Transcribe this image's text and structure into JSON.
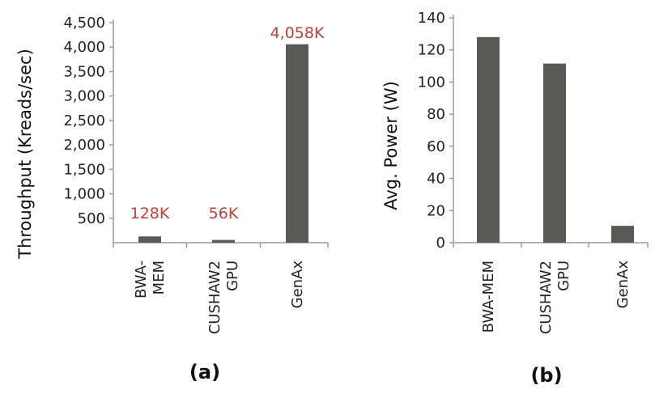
{
  "chart_data": [
    {
      "type": "bar",
      "categories": [
        [
          "BWA-",
          "MEM"
        ],
        [
          "CUSHAW2",
          "GPU"
        ],
        [
          "GenAx"
        ]
      ],
      "values": [
        128,
        56,
        4058
      ],
      "data_labels": [
        "128K",
        "56K",
        "4,058K"
      ],
      "ylabel": "Throughput  (Kreads/sec)",
      "ylim": [
        0,
        4500
      ],
      "yticks": [
        "500",
        "1,000",
        "1,500",
        "2,000",
        "2,500",
        "3,000",
        "3,500",
        "4,000",
        "4,500"
      ],
      "ytick_values": [
        500,
        1000,
        1500,
        2000,
        2500,
        3000,
        3500,
        4000,
        4500
      ],
      "panel_label": "(a)",
      "bar_color": "#595956",
      "label_color": "#c0403a",
      "grid": false
    },
    {
      "type": "bar",
      "categories": [
        [
          "BWA-MEM"
        ],
        [
          "CUSHAW2",
          "GPU"
        ],
        [
          "GenAx"
        ]
      ],
      "values": [
        128,
        111.5,
        10.5
      ],
      "ylabel": "Avg. Power (W)",
      "ylim": [
        0,
        140
      ],
      "yticks": [
        "0",
        "20",
        "40",
        "60",
        "80",
        "100",
        "120",
        "140"
      ],
      "ytick_values": [
        0,
        20,
        40,
        60,
        80,
        100,
        120,
        140
      ],
      "panel_label": "(b)",
      "bar_color": "#595956",
      "grid": false
    }
  ]
}
